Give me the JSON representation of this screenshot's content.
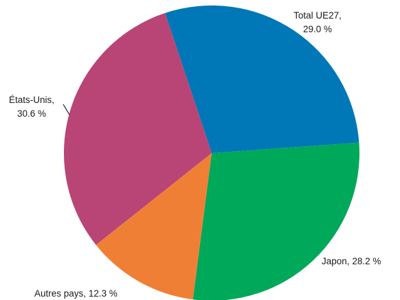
{
  "chart_data": {
    "type": "pie",
    "title": "",
    "slices": [
      {
        "label": "Total UE27,",
        "value_label": "29.0 %",
        "value": 29.0,
        "color": "#0077b6"
      },
      {
        "label": "Japon,",
        "value_label": "28.2 %",
        "value": 28.2,
        "color": "#00a85a"
      },
      {
        "label": "Autres pays,",
        "value_label": "12.3 %",
        "value": 12.3,
        "color": "#f07f36"
      },
      {
        "label": "États-Unis,",
        "value_label": "30.6 %",
        "value": 30.6,
        "color": "#b84575"
      }
    ],
    "legend": "none"
  }
}
